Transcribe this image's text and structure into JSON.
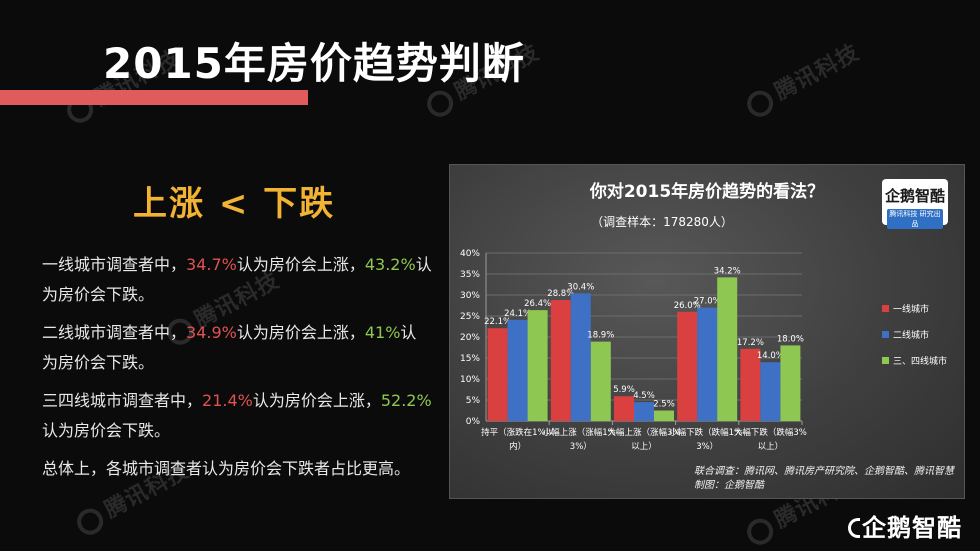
{
  "slide": {
    "title": "2015年房价趋势判断",
    "headline": "上涨 < 下跌",
    "watermark": "腾讯科技",
    "corner_logo": "企鹅智酷",
    "accent_bar_color": "#e05c5c",
    "paragraphs": [
      {
        "parts": [
          {
            "text": "一线城市调查者中，",
            "style": "normal"
          },
          {
            "text": "34.7%",
            "style": "red"
          },
          {
            "text": "认为房价会上涨，",
            "style": "normal"
          },
          {
            "text": "43.2%",
            "style": "green"
          },
          {
            "text": "认为房价会下跌。",
            "style": "normal"
          }
        ]
      },
      {
        "parts": [
          {
            "text": "二线城市调查者中，",
            "style": "normal"
          },
          {
            "text": "34.9%",
            "style": "red"
          },
          {
            "text": "认为房价会上涨，",
            "style": "normal"
          },
          {
            "text": "41%",
            "style": "green"
          },
          {
            "text": "认为房价会下跌。",
            "style": "normal"
          }
        ]
      },
      {
        "parts": [
          {
            "text": "三四线城市调查者中，",
            "style": "normal"
          },
          {
            "text": "21.4%",
            "style": "red"
          },
          {
            "text": "认为房价会上涨，",
            "style": "normal"
          },
          {
            "text": "52.2%",
            "style": "green"
          },
          {
            "text": "认为房价会下跌。",
            "style": "normal"
          }
        ]
      },
      {
        "parts": [
          {
            "text": "总体上，各城市调查者认为房价会下跌者占比更高。",
            "style": "normal"
          }
        ]
      }
    ]
  },
  "chart_panel": {
    "logo_main": "企鹅智酷",
    "logo_sub": "腾讯科技 研究出品",
    "source_lines": [
      "联合调查：腾讯网、腾讯房产研究院、企鹅智酷、腾讯智慧",
      "制图：企鹅智酷"
    ]
  },
  "chart_data": {
    "type": "bar",
    "title": "你对2015年房价趋势的看法？",
    "subtitle": "（调查样本：178280人）",
    "xlabel": "",
    "ylabel": "",
    "ylim": [
      0,
      40
    ],
    "yticks": [
      "0%",
      "5%",
      "10%",
      "15%",
      "20%",
      "25%",
      "30%",
      "35%",
      "40%"
    ],
    "categories": [
      [
        "持平（涨跌在1%以",
        "内）"
      ],
      [
        "小幅上涨（涨幅1%-",
        "3%）"
      ],
      [
        "大幅上涨（涨幅3%",
        "以上）"
      ],
      [
        "小幅下跌（跌幅1%-",
        "3%）"
      ],
      [
        "大幅下跌（跌幅3%",
        "以上）"
      ]
    ],
    "series": [
      {
        "name": "一线城市",
        "color": "#d9403f",
        "values": [
          22.1,
          28.8,
          5.9,
          26.0,
          17.2
        ],
        "labels": [
          "22.1%",
          "28.8%",
          "5.9%",
          "26.0%",
          "17.2%"
        ]
      },
      {
        "name": "二线城市",
        "color": "#3e71c6",
        "values": [
          24.1,
          30.4,
          4.5,
          27.0,
          14.0
        ],
        "labels": [
          "24.1%",
          "30.4%",
          "4.5%",
          "27.0%",
          "14.0%"
        ]
      },
      {
        "name": "三、四线城市",
        "color": "#8ec751",
        "values": [
          26.4,
          18.9,
          2.5,
          34.2,
          18.0
        ],
        "labels": [
          "26.4%",
          "18.9%",
          "2.5%",
          "34.2%",
          "18.0%"
        ]
      }
    ],
    "legend_position": "right",
    "grid": true
  }
}
